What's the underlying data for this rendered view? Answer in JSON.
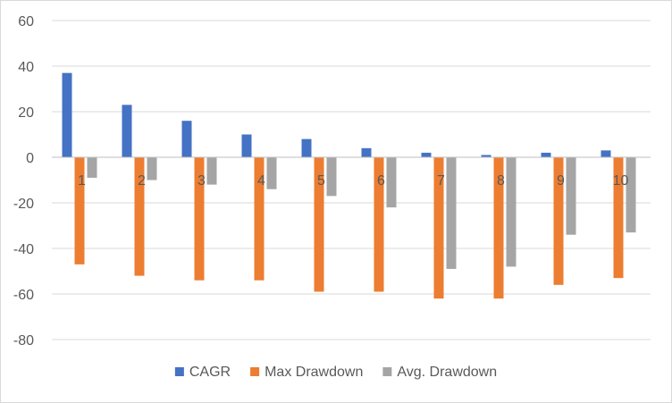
{
  "chart_data": {
    "type": "bar",
    "title": "",
    "xlabel": "",
    "ylabel": "",
    "categories": [
      "1",
      "2",
      "3",
      "4",
      "5",
      "6",
      "7",
      "8",
      "9",
      "10"
    ],
    "series": [
      {
        "name": "CAGR",
        "color": "#4472c4",
        "values": [
          37,
          23,
          16,
          10,
          8,
          4,
          2,
          1,
          2,
          3
        ]
      },
      {
        "name": "Max Drawdown",
        "color": "#ed7d31",
        "values": [
          -47,
          -52,
          -54,
          -54,
          -59,
          -59,
          -62,
          -62,
          -56,
          -53
        ]
      },
      {
        "name": "Avg. Drawdown",
        "color": "#a5a5a5",
        "values": [
          -9,
          -10,
          -12,
          -14,
          -17,
          -22,
          -49,
          -48,
          -34,
          -33
        ]
      }
    ],
    "ylim": [
      -80,
      60
    ],
    "yticks": [
      60,
      40,
      20,
      0,
      -20,
      -40,
      -60,
      -80
    ],
    "grid": true,
    "legend_position": "bottom"
  }
}
